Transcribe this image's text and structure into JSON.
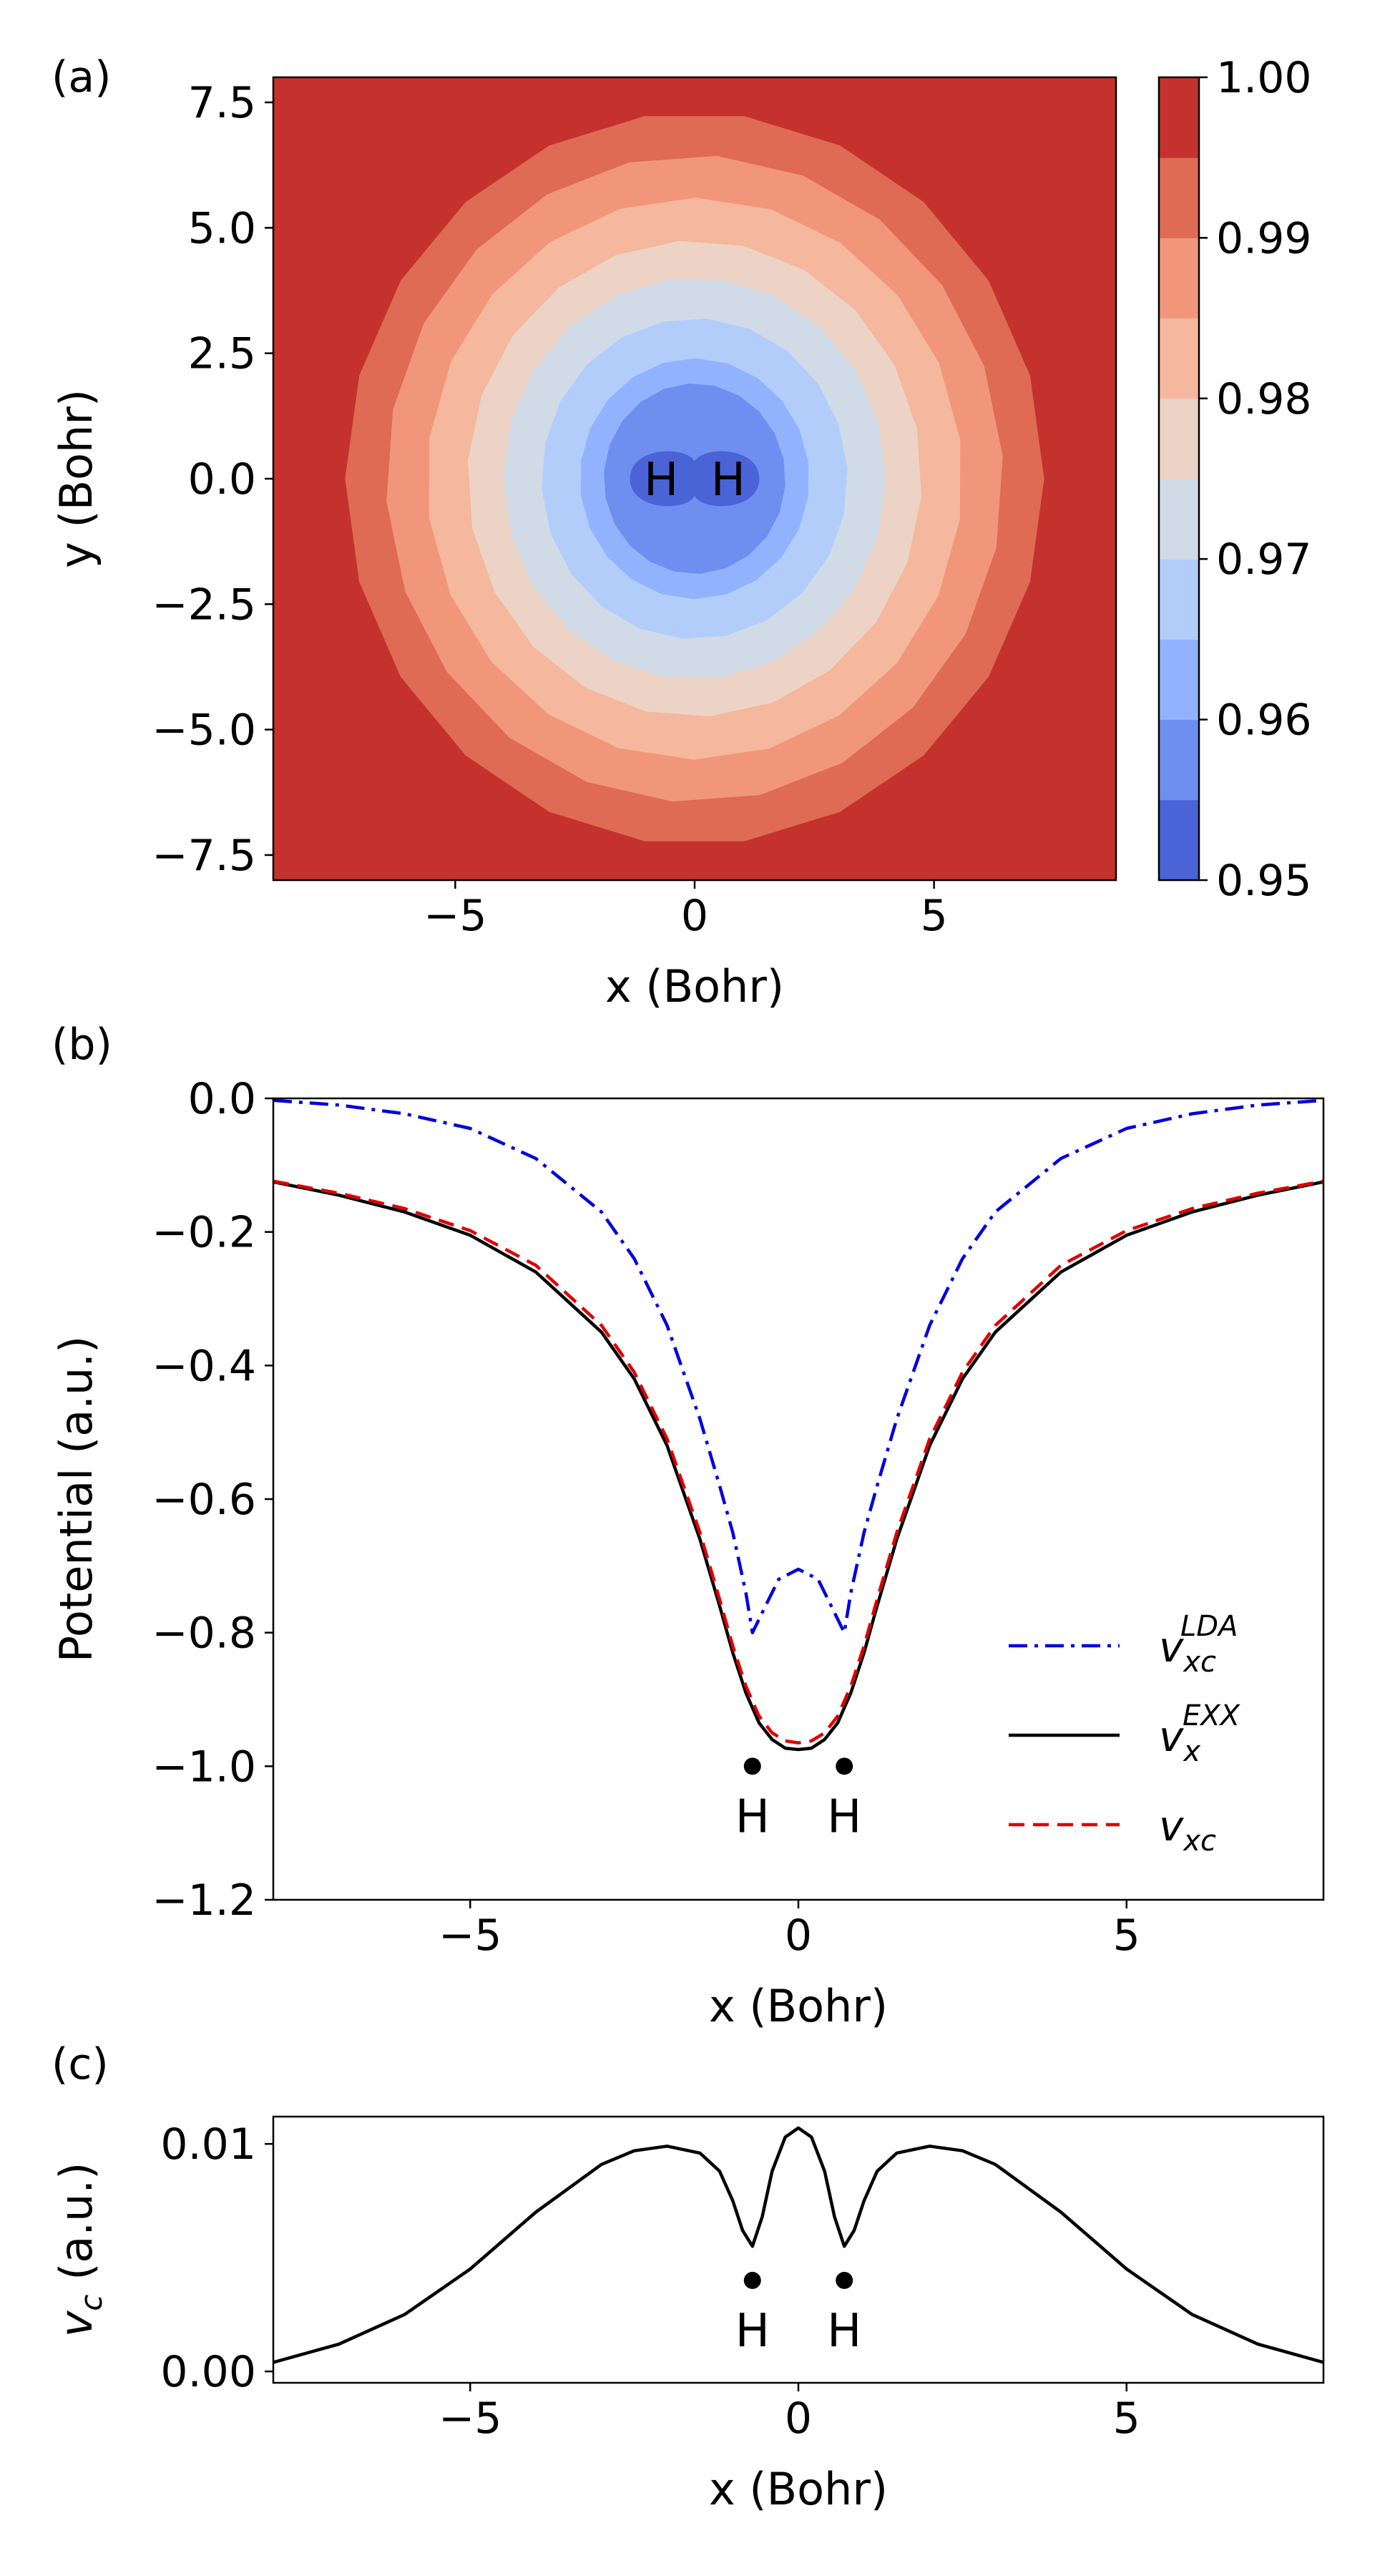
{
  "panels": [
    {
      "label": "(a)",
      "type": "contour",
      "xlabel": "x (Bohr)",
      "ylabel": "y (Bohr)",
      "xlim": [
        -8.8,
        8.8
      ],
      "ylim": [
        -8.0,
        8.0
      ],
      "xticks": [
        {
          "v": -5,
          "t": "−5"
        },
        {
          "v": 0,
          "t": "0"
        },
        {
          "v": 5,
          "t": "5"
        }
      ],
      "yticks": [
        {
          "v": 7.5,
          "t": "7.5"
        },
        {
          "v": 5.0,
          "t": "5.0"
        },
        {
          "v": 2.5,
          "t": "2.5"
        },
        {
          "v": 0.0,
          "t": "0.0"
        },
        {
          "v": -2.5,
          "t": "−2.5"
        },
        {
          "v": -5.0,
          "t": "−5.0"
        },
        {
          "v": -7.5,
          "t": "−7.5"
        }
      ],
      "colorbar": {
        "range": [
          0.95,
          1.0
        ],
        "ticks": [
          {
            "v": 1.0,
            "t": "1.00"
          },
          {
            "v": 0.99,
            "t": "0.99"
          },
          {
            "v": 0.98,
            "t": "0.98"
          },
          {
            "v": 0.97,
            "t": "0.97"
          },
          {
            "v": 0.96,
            "t": "0.96"
          },
          {
            "v": 0.95,
            "t": "0.95"
          }
        ],
        "level_colors": [
          "#4a63d6",
          "#6e8ff0",
          "#92b2fd",
          "#b3cdfb",
          "#d1dbe8",
          "#ecd3c6",
          "#f5b79d",
          "#f1967a",
          "#df6b54",
          "#c5322e"
        ]
      },
      "contour_radii": [
        {
          "r": 7.3,
          "color": "#df6b54"
        },
        {
          "r": 6.45,
          "color": "#f1967a"
        },
        {
          "r": 5.6,
          "color": "#f5b79d"
        },
        {
          "r": 4.75,
          "color": "#ecd3c6"
        },
        {
          "r": 4.0,
          "color": "#d1dbe8"
        },
        {
          "r": 3.2,
          "color": "#b3cdfb"
        },
        {
          "r": 2.4,
          "color": "#92b2fd"
        },
        {
          "r": 1.9,
          "color": "#6e8ff0"
        }
      ],
      "atoms": [
        {
          "x": -0.7,
          "y": 0,
          "label": "H"
        },
        {
          "x": 0.7,
          "y": 0,
          "label": "H"
        }
      ]
    },
    {
      "label": "(b)",
      "type": "line",
      "xlabel": "x (Bohr)",
      "ylabel": "Potential (a.u.)",
      "xlim": [
        -8,
        8
      ],
      "ylim": [
        -1.2,
        0.0
      ],
      "xticks": [
        {
          "v": -5,
          "t": "−5"
        },
        {
          "v": 0,
          "t": "0"
        },
        {
          "v": 5,
          "t": "5"
        }
      ],
      "yticks": [
        {
          "v": 0.0,
          "t": "0.0"
        },
        {
          "v": -0.2,
          "t": "−0.2"
        },
        {
          "v": -0.4,
          "t": "−0.4"
        },
        {
          "v": -0.6,
          "t": "−0.6"
        },
        {
          "v": -0.8,
          "t": "−0.8"
        },
        {
          "v": -1.0,
          "t": "−1.0"
        },
        {
          "v": -1.2,
          "t": "−1.2"
        }
      ],
      "series": [
        {
          "name": "v_xc^LDA",
          "main": "v",
          "sub": "xc",
          "sup": "LDA",
          "color": "#0000dd",
          "dash": "dashdot",
          "x": [
            -8,
            -7,
            -6,
            -5,
            -4,
            -3,
            -2.5,
            -2,
            -1.5,
            -1.2,
            -1.0,
            -0.8,
            -0.7,
            -0.5,
            -0.3,
            0,
            0.3,
            0.5,
            0.7,
            0.8,
            1.0,
            1.2,
            1.5,
            2,
            2.5,
            3,
            4,
            5,
            6,
            7,
            8
          ],
          "y": [
            -0.003,
            -0.01,
            -0.023,
            -0.045,
            -0.09,
            -0.17,
            -0.24,
            -0.34,
            -0.48,
            -0.58,
            -0.65,
            -0.74,
            -0.8,
            -0.76,
            -0.72,
            -0.705,
            -0.72,
            -0.76,
            -0.8,
            -0.74,
            -0.65,
            -0.58,
            -0.48,
            -0.34,
            -0.24,
            -0.17,
            -0.09,
            -0.045,
            -0.023,
            -0.01,
            -0.003
          ]
        },
        {
          "name": "v_x^EXX",
          "main": "v",
          "sub": "x",
          "sup": "EXX",
          "color": "#000000",
          "dash": "solid",
          "x": [
            -8,
            -7,
            -6,
            -5,
            -4,
            -3,
            -2.5,
            -2,
            -1.5,
            -1.2,
            -1.0,
            -0.8,
            -0.6,
            -0.4,
            -0.2,
            0,
            0.2,
            0.4,
            0.6,
            0.8,
            1.0,
            1.2,
            1.5,
            2,
            2.5,
            3,
            4,
            5,
            6,
            7,
            8
          ],
          "y": [
            -0.125,
            -0.145,
            -0.17,
            -0.205,
            -0.26,
            -0.35,
            -0.42,
            -0.52,
            -0.66,
            -0.76,
            -0.83,
            -0.89,
            -0.935,
            -0.96,
            -0.973,
            -0.975,
            -0.973,
            -0.96,
            -0.935,
            -0.89,
            -0.83,
            -0.76,
            -0.66,
            -0.52,
            -0.42,
            -0.35,
            -0.26,
            -0.205,
            -0.17,
            -0.145,
            -0.125
          ]
        },
        {
          "name": "v_xc",
          "main": "v",
          "sub": "xc",
          "sup": "",
          "color": "#e00000",
          "dash": "dashed",
          "x": [
            -8,
            -7,
            -6,
            -5,
            -4,
            -3,
            -2.5,
            -2,
            -1.5,
            -1.2,
            -1.0,
            -0.8,
            -0.6,
            -0.4,
            -0.2,
            0,
            0.2,
            0.4,
            0.6,
            0.8,
            1.0,
            1.2,
            1.5,
            2,
            2.5,
            3,
            4,
            5,
            6,
            7,
            8
          ],
          "y": [
            -0.124,
            -0.142,
            -0.165,
            -0.198,
            -0.25,
            -0.34,
            -0.41,
            -0.51,
            -0.65,
            -0.75,
            -0.82,
            -0.88,
            -0.925,
            -0.95,
            -0.962,
            -0.965,
            -0.962,
            -0.95,
            -0.925,
            -0.88,
            -0.82,
            -0.75,
            -0.65,
            -0.51,
            -0.41,
            -0.34,
            -0.25,
            -0.198,
            -0.165,
            -0.142,
            -0.124
          ]
        }
      ],
      "atoms": [
        {
          "x": -0.7,
          "y": -1.0,
          "label": "H"
        },
        {
          "x": 0.7,
          "y": -1.0,
          "label": "H"
        }
      ],
      "legend_position": "center-right"
    },
    {
      "label": "(c)",
      "type": "line",
      "xlabel": "x (Bohr)",
      "ylabel_main": "v",
      "ylabel_sub": "c",
      "ylabel_rest": " (a.u.)",
      "xlim": [
        -8,
        8
      ],
      "ylim": [
        -0.0005,
        0.0112
      ],
      "xticks": [
        {
          "v": -5,
          "t": "−5"
        },
        {
          "v": 0,
          "t": "0"
        },
        {
          "v": 5,
          "t": "5"
        }
      ],
      "yticks": [
        {
          "v": 0.01,
          "t": "0.01"
        },
        {
          "v": 0.0,
          "t": "0.00"
        }
      ],
      "series": [
        {
          "name": "v_c",
          "color": "#000000",
          "dash": "solid",
          "x": [
            -8,
            -7,
            -6,
            -5,
            -4,
            -3,
            -2.5,
            -2,
            -1.5,
            -1.2,
            -1.0,
            -0.85,
            -0.7,
            -0.55,
            -0.4,
            -0.2,
            0,
            0.2,
            0.4,
            0.55,
            0.7,
            0.85,
            1.0,
            1.2,
            1.5,
            2,
            2.5,
            3,
            4,
            5,
            6,
            7,
            8
          ],
          "y": [
            0.0004,
            0.0012,
            0.0025,
            0.0045,
            0.007,
            0.0091,
            0.0097,
            0.0099,
            0.0096,
            0.0088,
            0.0075,
            0.0062,
            0.0055,
            0.0068,
            0.0088,
            0.0103,
            0.0107,
            0.0103,
            0.0088,
            0.0068,
            0.0055,
            0.0062,
            0.0075,
            0.0088,
            0.0096,
            0.0099,
            0.0097,
            0.0091,
            0.007,
            0.0045,
            0.0025,
            0.0012,
            0.0004
          ]
        }
      ],
      "atoms": [
        {
          "x": -0.7,
          "y": 0.004,
          "label": "H"
        },
        {
          "x": 0.7,
          "y": 0.004,
          "label": "H"
        }
      ]
    }
  ]
}
